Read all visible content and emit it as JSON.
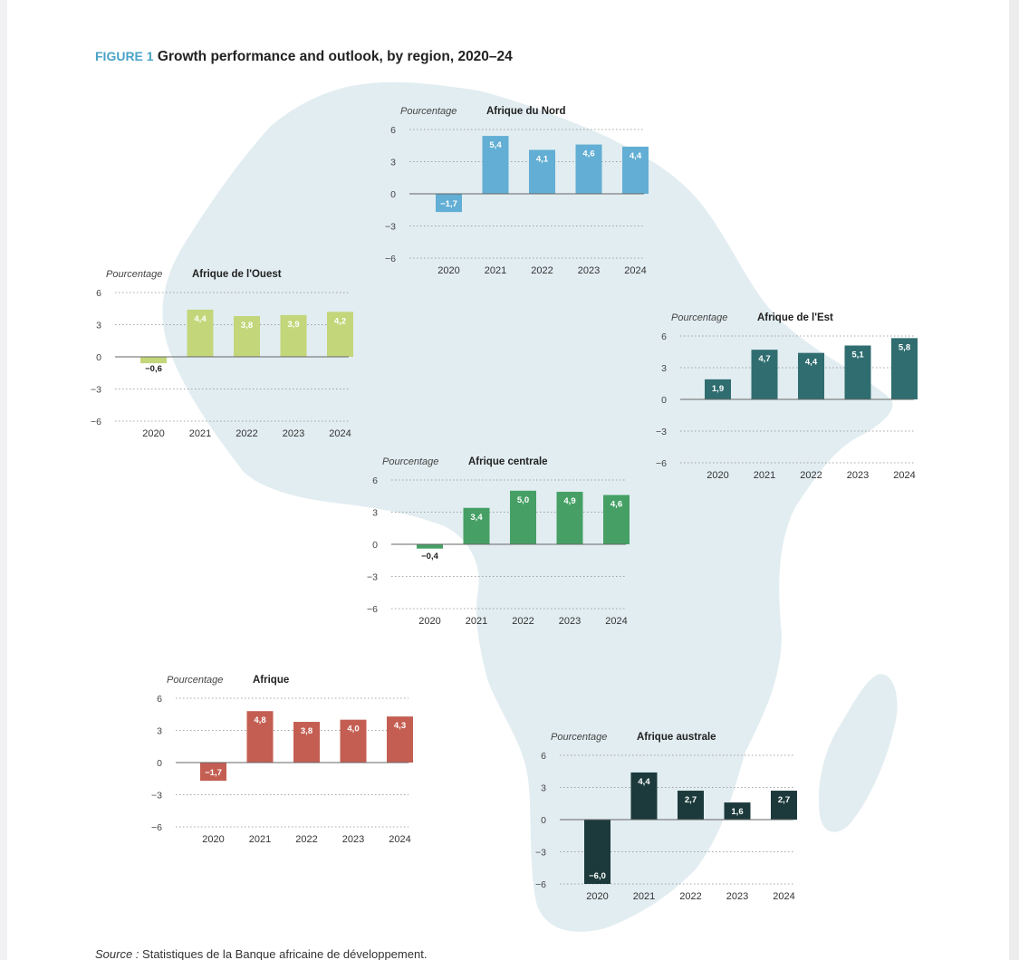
{
  "figure": {
    "label": "FIGURE 1",
    "title": "Growth performance and outlook, by region, 2020–24"
  },
  "source": {
    "label": "Source :",
    "text": "Statistiques de la Banque africaine de développement."
  },
  "chart_data": [
    {
      "id": "nord",
      "type": "bar",
      "title": "Afrique du Nord",
      "ylabel": "Pourcentage",
      "categories": [
        "2020",
        "2021",
        "2022",
        "2023",
        "2024"
      ],
      "values": [
        -1.7,
        5.4,
        4.1,
        4.6,
        4.4
      ],
      "value_labels": [
        "−1,7",
        "5,4",
        "4,1",
        "4,6",
        "4,4"
      ],
      "yticks": [
        6,
        3,
        0,
        -3,
        -6
      ],
      "ytick_labels": [
        "6",
        "3",
        "0",
        "−3",
        "−6"
      ],
      "ylim": [
        -6,
        6
      ],
      "grid": "dotted",
      "color": "#62aed4"
    },
    {
      "id": "ouest",
      "type": "bar",
      "title": "Afrique de l'Ouest",
      "ylabel": "Pourcentage",
      "categories": [
        "2020",
        "2021",
        "2022",
        "2023",
        "2024"
      ],
      "values": [
        -0.6,
        4.4,
        3.8,
        3.9,
        4.2
      ],
      "value_labels": [
        "−0,6",
        "4,4",
        "3,8",
        "3,9",
        "4,2"
      ],
      "yticks": [
        6,
        3,
        0,
        -3,
        -6
      ],
      "ytick_labels": [
        "6",
        "3",
        "0",
        "−3",
        "−6"
      ],
      "ylim": [
        -6,
        6
      ],
      "grid": "dotted",
      "color": "#c3d67a"
    },
    {
      "id": "est",
      "type": "bar",
      "title": "Afrique de l'Est",
      "ylabel": "Pourcentage",
      "categories": [
        "2020",
        "2021",
        "2022",
        "2023",
        "2024"
      ],
      "values": [
        1.9,
        4.7,
        4.4,
        5.1,
        5.8
      ],
      "value_labels": [
        "1,9",
        "4,7",
        "4,4",
        "5,1",
        "5,8"
      ],
      "yticks": [
        6,
        3,
        0,
        -3,
        -6
      ],
      "ytick_labels": [
        "6",
        "3",
        "0",
        "−3",
        "−6"
      ],
      "ylim": [
        -6,
        6
      ],
      "grid": "dotted",
      "color": "#2f6d70"
    },
    {
      "id": "centrale",
      "type": "bar",
      "title": "Afrique centrale",
      "ylabel": "Pourcentage",
      "categories": [
        "2020",
        "2021",
        "2022",
        "2023",
        "2024"
      ],
      "values": [
        -0.4,
        3.4,
        5.0,
        4.9,
        4.6
      ],
      "value_labels": [
        "−0,4",
        "3,4",
        "5,0",
        "4,9",
        "4,6"
      ],
      "yticks": [
        6,
        3,
        0,
        -3,
        -6
      ],
      "ytick_labels": [
        "6",
        "3",
        "0",
        "−3",
        "−6"
      ],
      "ylim": [
        -6,
        6
      ],
      "grid": "dotted",
      "color": "#46a065"
    },
    {
      "id": "afrique",
      "type": "bar",
      "title": "Afrique",
      "ylabel": "Pourcentage",
      "categories": [
        "2020",
        "2021",
        "2022",
        "2023",
        "2024"
      ],
      "values": [
        -1.7,
        4.8,
        3.8,
        4.0,
        4.3
      ],
      "value_labels": [
        "−1,7",
        "4,8",
        "3,8",
        "4,0",
        "4,3"
      ],
      "yticks": [
        6,
        3,
        0,
        -3,
        -6
      ],
      "ytick_labels": [
        "6",
        "3",
        "0",
        "−3",
        "−6"
      ],
      "ylim": [
        -6,
        6
      ],
      "grid": "dotted",
      "color": "#c45e52"
    },
    {
      "id": "australe",
      "type": "bar",
      "title": "Afrique australe",
      "ylabel": "Pourcentage",
      "categories": [
        "2020",
        "2021",
        "2022",
        "2023",
        "2024"
      ],
      "values": [
        -6.0,
        4.4,
        2.7,
        1.6,
        2.7
      ],
      "value_labels": [
        "−6,0",
        "4,4",
        "2,7",
        "1,6",
        "2,7"
      ],
      "yticks": [
        6,
        3,
        0,
        -3,
        -6
      ],
      "ytick_labels": [
        "6",
        "3",
        "0",
        "−3",
        "−6"
      ],
      "ylim": [
        -6,
        6
      ],
      "grid": "dotted",
      "color": "#1c3a3b"
    }
  ]
}
